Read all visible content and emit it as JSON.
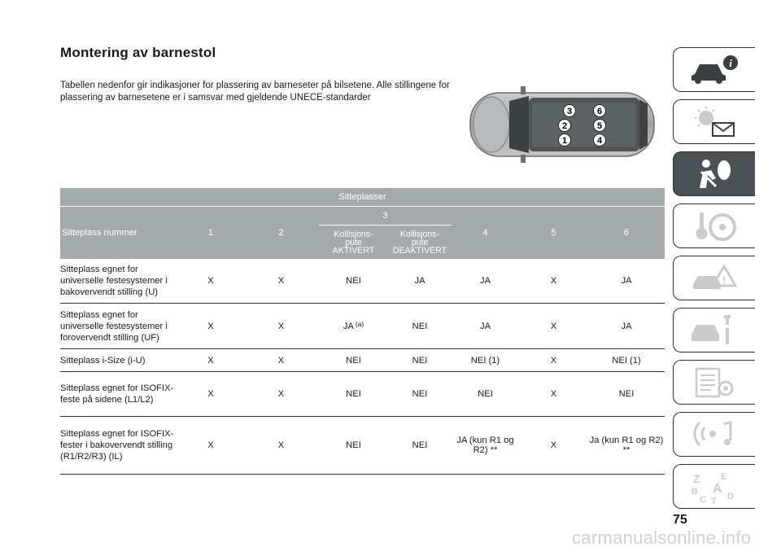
{
  "title": "Montering av barnestol",
  "intro": "Tabellen nedenfor gir indikasjoner for plassering av barneseter på bilsetene. Alle stillingene for plassering av barnesetene er i samsvar med gjeldende UNECE-standarder",
  "car_diagram": {
    "seat_numbers": [
      "1",
      "2",
      "3",
      "4",
      "5",
      "6"
    ]
  },
  "table": {
    "header_top": "Sitteplasser",
    "col_label": "Sitteplass nummer",
    "cols": [
      "1",
      "2",
      "3",
      "4",
      "5",
      "6"
    ],
    "col3_sub": [
      "Kollisjons-\npute\nAKTIVERT",
      "Kollisjons-\npute\nDEAKTIVERT"
    ],
    "col3_sub_a_line1": "Kollisjons-",
    "col3_sub_a_line2": "pute",
    "col3_sub_a_line3": "AKTIVERT",
    "col3_sub_b_line1": "Kollisjons-",
    "col3_sub_b_line2": "pute",
    "col3_sub_b_line3": "DEAKTIVERT",
    "rows": [
      {
        "label": "Sitteplass egnet for universelle festesystemer i bakovervendt stilling (U)",
        "cells": [
          "X",
          "X",
          "NEI",
          "JA",
          "JA",
          "X",
          "JA"
        ],
        "note": ""
      },
      {
        "label": "Sitteplass egnet for universelle festesystemer i forovervendt stilling (UF)",
        "cells": [
          "X",
          "X",
          "JA",
          "NEI",
          "JA",
          "X",
          "JA"
        ],
        "note": "(a)"
      },
      {
        "label": "Sitteplass i-Size (i-U)",
        "cells": [
          "X",
          "X",
          "NEI",
          "NEI",
          "NEI (1)",
          "X",
          "NEI (1)"
        ],
        "note": ""
      },
      {
        "label": "Sitteplass egnet for ISOFIX-feste på sidene (L1/L2)",
        "cells": [
          "X",
          "X",
          "NEI",
          "NEI",
          "NEI",
          "X",
          "NEI"
        ],
        "note": ""
      },
      {
        "label": "Sitteplass egnet for ISOFIX-fester i bakovervendt stilling (R1/R2/R3) (IL)",
        "cells": [
          "X",
          "X",
          "NEI",
          "NEI",
          "JA (kun R1 og R2) **",
          "X",
          "Ja (kun R1 og R2) **"
        ],
        "note": ""
      }
    ]
  },
  "sidebar": {
    "tabs": [
      {
        "icon": "car-info-icon",
        "active": false
      },
      {
        "icon": "warning-lights-icon",
        "active": false
      },
      {
        "icon": "safety-airbag-icon",
        "active": true
      },
      {
        "icon": "key-steering-icon",
        "active": false
      },
      {
        "icon": "car-accident-icon",
        "active": false
      },
      {
        "icon": "car-maintenance-icon",
        "active": false
      },
      {
        "icon": "technical-data-icon",
        "active": false
      },
      {
        "icon": "multimedia-icon",
        "active": false
      },
      {
        "icon": "index-alphabet-icon",
        "active": false
      }
    ]
  },
  "page_number": "75",
  "watermark": "carmanualsonline.info",
  "colors": {
    "header_band": "#a4a9ab",
    "active_tab": "#4a5256"
  }
}
